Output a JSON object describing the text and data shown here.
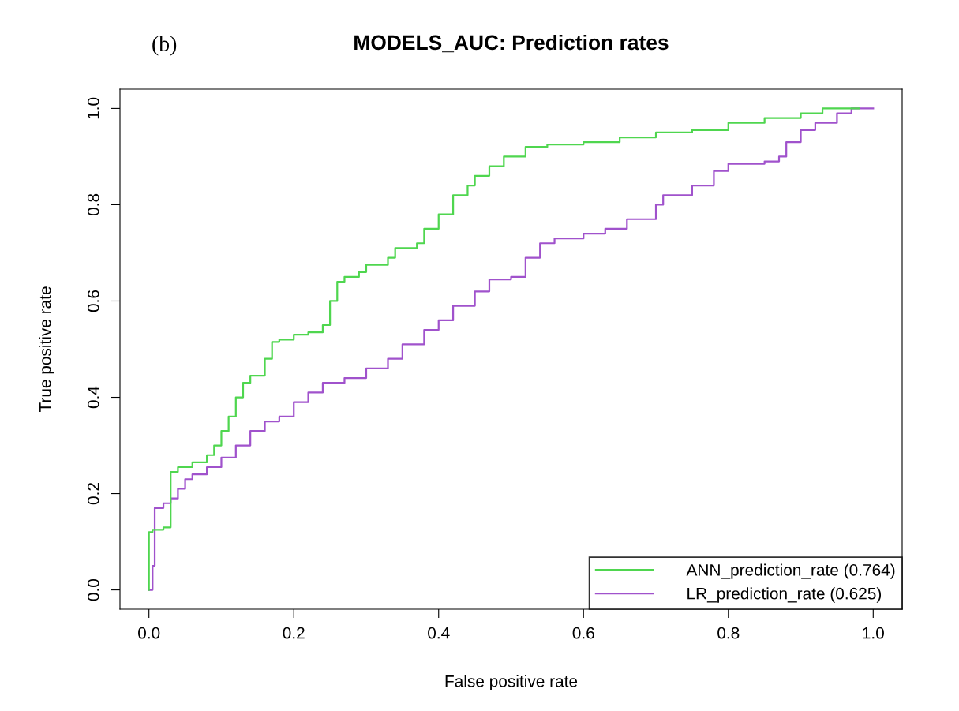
{
  "chart_data": {
    "type": "step",
    "title": "MODELS_AUC: Prediction rates",
    "xlabel": "False positive rate",
    "ylabel": "True positive rate",
    "annotations": [
      "(b)"
    ],
    "xlim": [
      -0.04,
      1.04
    ],
    "ylim": [
      -0.04,
      1.04
    ],
    "xticks": [
      {
        "value": 0,
        "label": "0.0"
      },
      {
        "value": 0.2,
        "label": "0.2"
      },
      {
        "value": 0.4,
        "label": "0.4"
      },
      {
        "value": 0.6,
        "label": "0.6"
      },
      {
        "value": 0.8,
        "label": "0.8"
      },
      {
        "value": 1,
        "label": "1.0"
      }
    ],
    "yticks": [
      {
        "value": 0,
        "label": "0.0"
      },
      {
        "value": 0.2,
        "label": "0.2"
      },
      {
        "value": 0.4,
        "label": "0.4"
      },
      {
        "value": 0.6,
        "label": "0.6"
      },
      {
        "value": 0.8,
        "label": "0.8"
      },
      {
        "value": 1,
        "label": "1.0"
      }
    ],
    "grid": false,
    "legend": "bottom right",
    "series": [
      {
        "name": "ANN_prediction_rate (0.764)",
        "color": "#4fd64f",
        "x": [
          0,
          0.0,
          0.005,
          0.02,
          0.03,
          0.04,
          0.06,
          0.08,
          0.09,
          0.1,
          0.11,
          0.12,
          0.13,
          0.14,
          0.16,
          0.17,
          0.18,
          0.2,
          0.22,
          0.24,
          0.25,
          0.26,
          0.27,
          0.29,
          0.3,
          0.33,
          0.34,
          0.37,
          0.38,
          0.4,
          0.42,
          0.44,
          0.45,
          0.47,
          0.49,
          0.52,
          0.55,
          0.6,
          0.65,
          0.7,
          0.75,
          0.8,
          0.85,
          0.9,
          0.93,
          0.98
        ],
        "values": [
          0,
          0.12,
          0.125,
          0.13,
          0.245,
          0.255,
          0.265,
          0.28,
          0.3,
          0.33,
          0.36,
          0.4,
          0.43,
          0.445,
          0.48,
          0.515,
          0.52,
          0.53,
          0.535,
          0.55,
          0.6,
          0.64,
          0.65,
          0.66,
          0.675,
          0.69,
          0.71,
          0.72,
          0.75,
          0.78,
          0.82,
          0.84,
          0.86,
          0.88,
          0.9,
          0.92,
          0.925,
          0.93,
          0.94,
          0.95,
          0.955,
          0.97,
          0.98,
          0.99,
          1.0,
          1.0
        ]
      },
      {
        "name": "LR_prediction_rate (0.625)",
        "color": "#a052cc",
        "x": [
          0,
          0.005,
          0.008,
          0.01,
          0.02,
          0.03,
          0.04,
          0.05,
          0.06,
          0.08,
          0.1,
          0.12,
          0.14,
          0.16,
          0.18,
          0.2,
          0.22,
          0.24,
          0.27,
          0.3,
          0.33,
          0.35,
          0.38,
          0.4,
          0.42,
          0.45,
          0.47,
          0.5,
          0.52,
          0.54,
          0.56,
          0.6,
          0.63,
          0.66,
          0.7,
          0.71,
          0.75,
          0.78,
          0.8,
          0.85,
          0.87,
          0.88,
          0.9,
          0.92,
          0.95,
          0.97,
          1.0
        ],
        "values": [
          0,
          0.05,
          0.17,
          0.17,
          0.18,
          0.19,
          0.21,
          0.23,
          0.24,
          0.255,
          0.275,
          0.3,
          0.33,
          0.35,
          0.36,
          0.39,
          0.41,
          0.43,
          0.44,
          0.46,
          0.48,
          0.51,
          0.54,
          0.56,
          0.59,
          0.62,
          0.645,
          0.65,
          0.69,
          0.72,
          0.73,
          0.74,
          0.75,
          0.77,
          0.8,
          0.82,
          0.84,
          0.87,
          0.885,
          0.89,
          0.9,
          0.93,
          0.955,
          0.97,
          0.99,
          1.0,
          1.0
        ]
      }
    ]
  }
}
